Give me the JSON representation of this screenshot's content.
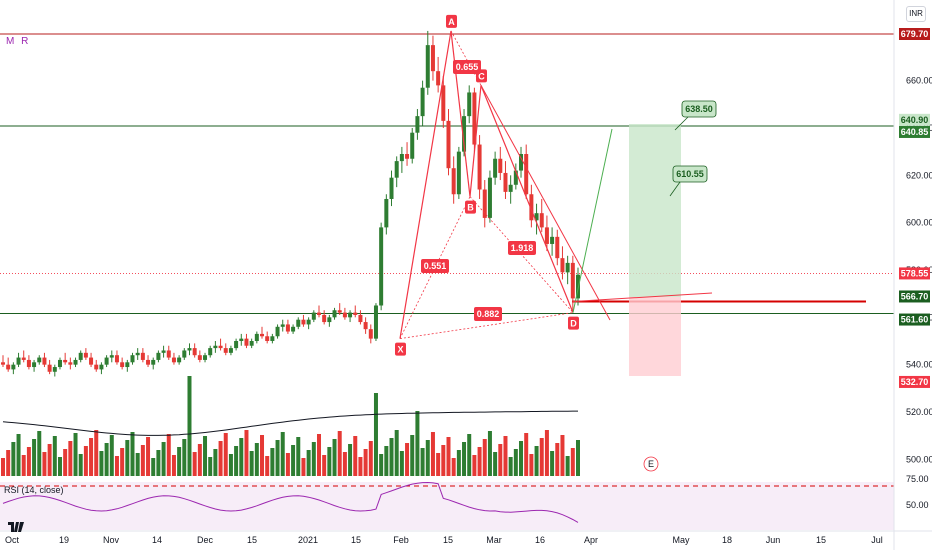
{
  "indicator_label": "M R",
  "currency_button": "INR",
  "rsi_label": "RSI (14, close)",
  "chart_data": {
    "type": "candlestick",
    "ylim": [
      490,
      690
    ],
    "y_ticks": [
      500,
      520,
      540,
      560,
      580,
      600,
      620,
      640,
      660
    ],
    "x_ticks": [
      "Oct",
      "19",
      "Nov",
      "14",
      "Dec",
      "15",
      "2021",
      "15",
      "Feb",
      "15",
      "Mar",
      "16",
      "Apr",
      "May",
      "18",
      "Jun",
      "15",
      "Jul"
    ],
    "horizontal_levels": [
      {
        "value": 679.7,
        "color": "#b71c1c"
      },
      {
        "value": 640.85,
        "color": "#1b5e20"
      },
      {
        "value": 561.6,
        "color": "#1b5e20"
      }
    ],
    "price_tags": [
      {
        "value": 679.7,
        "label": "679.70",
        "bg": "#b71c1c",
        "fg": "#ffffff"
      },
      {
        "value": 640.9,
        "label": "640.90",
        "bg": "#c8e6c9",
        "fg": "#1b5e20"
      },
      {
        "value": 640.85,
        "label": "640.85",
        "bg": "#2e7d32",
        "fg": "#ffffff"
      },
      {
        "value": 578.55,
        "label": "578.55",
        "bg": "#f23645",
        "fg": "#ffffff"
      },
      {
        "value": 566.7,
        "label": "566.70",
        "bg": "#1b5e20",
        "fg": "#ffffff"
      },
      {
        "value": 561.6,
        "label": "561.60",
        "bg": "#1b5e20",
        "fg": "#ffffff"
      },
      {
        "value": 532.7,
        "label": "532.70",
        "bg": "#f23645",
        "fg": "#ffffff"
      }
    ],
    "pattern_points": [
      {
        "label": "X",
        "price": 551
      },
      {
        "label": "A",
        "price": 681
      },
      {
        "label": "B",
        "price": 611
      },
      {
        "label": "C",
        "price": 658
      },
      {
        "label": "D",
        "price": 562
      }
    ],
    "ratio_labels": [
      "0.655",
      "0.551",
      "1.918",
      "0.882"
    ],
    "target_labels": [
      "638.50",
      "610.55"
    ],
    "rsi_ticks": [
      75,
      50
    ],
    "event_badge": "E",
    "colors": {
      "up": "#2e7d32",
      "down": "#e53935",
      "accent": "#f23645"
    },
    "candles": [
      [
        541,
        544,
        539,
        540
      ],
      [
        540,
        543,
        537,
        538
      ],
      [
        538,
        541,
        536,
        540
      ],
      [
        540,
        545,
        539,
        543
      ],
      [
        543,
        546,
        541,
        542
      ],
      [
        542,
        544,
        538,
        539
      ],
      [
        539,
        542,
        537,
        541
      ],
      [
        541,
        544,
        540,
        543
      ],
      [
        543,
        545,
        539,
        540
      ],
      [
        540,
        542,
        536,
        537
      ],
      [
        537,
        540,
        535,
        539
      ],
      [
        539,
        543,
        538,
        542
      ],
      [
        542,
        545,
        540,
        541
      ],
      [
        541,
        543,
        538,
        540
      ],
      [
        540,
        543,
        539,
        542
      ],
      [
        542,
        546,
        541,
        545
      ],
      [
        545,
        547,
        542,
        543
      ],
      [
        543,
        545,
        539,
        540
      ],
      [
        540,
        542,
        537,
        538
      ],
      [
        538,
        541,
        536,
        540
      ],
      [
        540,
        544,
        539,
        543
      ],
      [
        543,
        546,
        541,
        544
      ],
      [
        544,
        546,
        540,
        541
      ],
      [
        541,
        543,
        538,
        539
      ],
      [
        539,
        542,
        537,
        541
      ],
      [
        541,
        545,
        540,
        544
      ],
      [
        544,
        547,
        542,
        545
      ],
      [
        545,
        547,
        541,
        542
      ],
      [
        542,
        544,
        539,
        540
      ],
      [
        540,
        543,
        538,
        542
      ],
      [
        542,
        546,
        541,
        545
      ],
      [
        545,
        548,
        543,
        546
      ],
      [
        546,
        548,
        542,
        543
      ],
      [
        543,
        545,
        540,
        541
      ],
      [
        541,
        544,
        540,
        543
      ],
      [
        543,
        547,
        542,
        546
      ],
      [
        546,
        549,
        544,
        547
      ],
      [
        547,
        549,
        543,
        544
      ],
      [
        544,
        546,
        541,
        542
      ],
      [
        542,
        545,
        541,
        544
      ],
      [
        544,
        548,
        543,
        547
      ],
      [
        547,
        550,
        545,
        548
      ],
      [
        548,
        551,
        546,
        547
      ],
      [
        547,
        549,
        544,
        545
      ],
      [
        545,
        548,
        544,
        547
      ],
      [
        547,
        551,
        546,
        550
      ],
      [
        550,
        553,
        548,
        551
      ],
      [
        551,
        553,
        547,
        548
      ],
      [
        548,
        551,
        547,
        550
      ],
      [
        550,
        554,
        549,
        553
      ],
      [
        553,
        556,
        551,
        552
      ],
      [
        552,
        554,
        549,
        550
      ],
      [
        550,
        553,
        549,
        552
      ],
      [
        552,
        557,
        551,
        556
      ],
      [
        556,
        559,
        554,
        557
      ],
      [
        557,
        559,
        553,
        554
      ],
      [
        554,
        557,
        553,
        556
      ],
      [
        556,
        560,
        555,
        559
      ],
      [
        559,
        561,
        556,
        557
      ],
      [
        557,
        560,
        555,
        559
      ],
      [
        559,
        563,
        558,
        562
      ],
      [
        562,
        565,
        560,
        561
      ],
      [
        561,
        563,
        557,
        558
      ],
      [
        558,
        561,
        556,
        560
      ],
      [
        560,
        564,
        559,
        563
      ],
      [
        563,
        566,
        561,
        562
      ],
      [
        562,
        564,
        559,
        560
      ],
      [
        560,
        563,
        558,
        562
      ],
      [
        562,
        565,
        560,
        561
      ],
      [
        561,
        563,
        557,
        558
      ],
      [
        558,
        560,
        553,
        555
      ],
      [
        555,
        557,
        549,
        551
      ],
      [
        551,
        566,
        550,
        565
      ],
      [
        565,
        600,
        563,
        598
      ],
      [
        598,
        612,
        595,
        610
      ],
      [
        610,
        622,
        607,
        619
      ],
      [
        619,
        628,
        615,
        626
      ],
      [
        626,
        632,
        621,
        629
      ],
      [
        629,
        634,
        624,
        627
      ],
      [
        627,
        640,
        625,
        638
      ],
      [
        638,
        648,
        635,
        645
      ],
      [
        645,
        660,
        641,
        657
      ],
      [
        657,
        681,
        654,
        675
      ],
      [
        675,
        679,
        660,
        664
      ],
      [
        664,
        670,
        655,
        658
      ],
      [
        658,
        662,
        640,
        643
      ],
      [
        643,
        648,
        620,
        623
      ],
      [
        623,
        628,
        608,
        612
      ],
      [
        612,
        632,
        610,
        630
      ],
      [
        630,
        648,
        628,
        645
      ],
      [
        645,
        658,
        642,
        655
      ],
      [
        655,
        657,
        630,
        633
      ],
      [
        633,
        637,
        610,
        614
      ],
      [
        614,
        618,
        598,
        602
      ],
      [
        602,
        622,
        600,
        619
      ],
      [
        619,
        630,
        616,
        627
      ],
      [
        627,
        632,
        618,
        621
      ],
      [
        621,
        626,
        610,
        613
      ],
      [
        613,
        620,
        608,
        616
      ],
      [
        616,
        625,
        614,
        622
      ],
      [
        622,
        632,
        619,
        629
      ],
      [
        629,
        633,
        610,
        612
      ],
      [
        612,
        616,
        598,
        601
      ],
      [
        601,
        608,
        595,
        604
      ],
      [
        604,
        610,
        596,
        598
      ],
      [
        598,
        603,
        588,
        591
      ],
      [
        591,
        598,
        586,
        594
      ],
      [
        594,
        597,
        582,
        585
      ],
      [
        585,
        590,
        576,
        579
      ],
      [
        579,
        586,
        574,
        583
      ],
      [
        583,
        586,
        562,
        568
      ],
      [
        568,
        581,
        565,
        578
      ]
    ]
  }
}
